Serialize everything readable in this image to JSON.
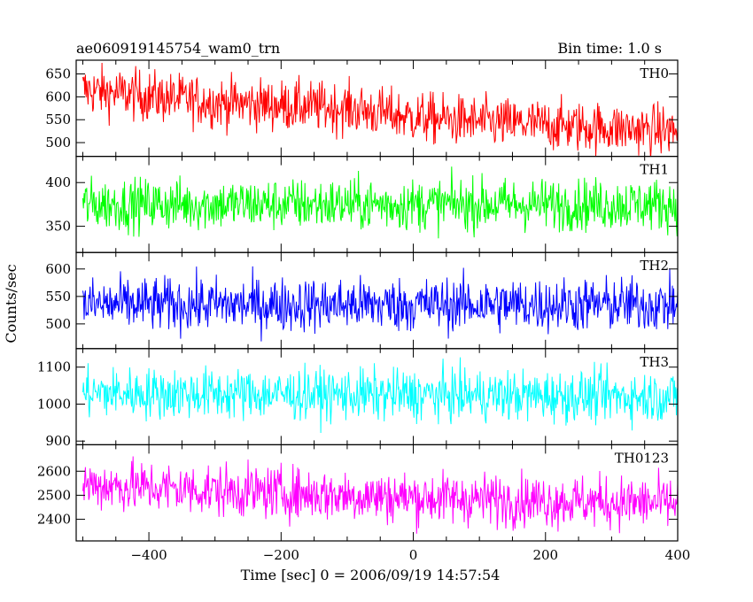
{
  "header": {
    "title": "ae060919145754_wam0_trn",
    "bin_time": "Bin time: 1.0 s"
  },
  "axes": {
    "ylabel": "Counts/sec",
    "xlabel": "Time [sec] 0 = 2006/09/19 14:57:54"
  },
  "chart_data": {
    "type": "line",
    "x_range": [
      -510,
      400
    ],
    "x_ticks": [
      -400,
      -200,
      0,
      200,
      400
    ],
    "x_tick_labels": [
      "−400",
      "−200",
      "0",
      "200",
      "400"
    ],
    "bin_seconds": 1.0,
    "grid": false,
    "panels": [
      {
        "name": "TH0",
        "color": "#ff0000",
        "ylim": [
          470,
          680
        ],
        "y_ticks": [
          500,
          550,
          600,
          650
        ],
        "y_tick_labels": [
          "500",
          "550",
          "600",
          "650"
        ],
        "trend": [
          [
            -500,
            615
          ],
          [
            -300,
            588
          ],
          [
            -100,
            575
          ],
          [
            0,
            555
          ],
          [
            100,
            545
          ],
          [
            400,
            525
          ]
        ],
        "noise": 28
      },
      {
        "name": "TH1",
        "color": "#00ff00",
        "ylim": [
          320,
          430
        ],
        "y_ticks": [
          350,
          400
        ],
        "y_tick_labels": [
          "350",
          "400"
        ],
        "trend": [
          [
            -500,
            375
          ],
          [
            400,
            375
          ]
        ],
        "noise": 15
      },
      {
        "name": "TH2",
        "color": "#0000ff",
        "ylim": [
          455,
          630
        ],
        "y_ticks": [
          500,
          550,
          600
        ],
        "y_tick_labels": [
          "500",
          "550",
          "600"
        ],
        "trend": [
          [
            -500,
            535
          ],
          [
            400,
            535
          ]
        ],
        "noise": 25
      },
      {
        "name": "TH3",
        "color": "#00ffff",
        "ylim": [
          890,
          1150
        ],
        "y_ticks": [
          900,
          1000,
          1100
        ],
        "y_tick_labels": [
          "900",
          "1000",
          "1100"
        ],
        "trend": [
          [
            -500,
            1030
          ],
          [
            400,
            1020
          ]
        ],
        "noise": 35
      },
      {
        "name": "TH0123",
        "color": "#ff00ff",
        "ylim": [
          2310,
          2710
        ],
        "y_ticks": [
          2400,
          2500,
          2600
        ],
        "y_tick_labels": [
          "2400",
          "2500",
          "2600"
        ],
        "trend": [
          [
            -500,
            2545
          ],
          [
            -300,
            2520
          ],
          [
            0,
            2490
          ],
          [
            400,
            2465
          ]
        ],
        "noise": 55
      }
    ]
  }
}
